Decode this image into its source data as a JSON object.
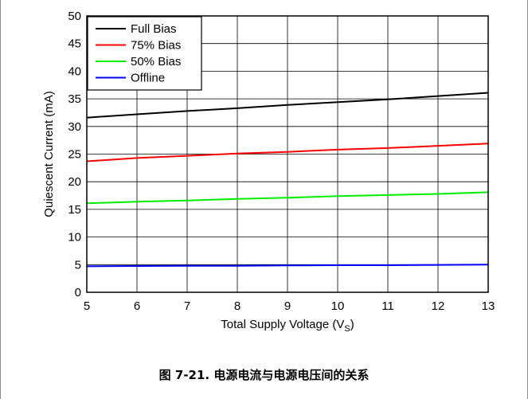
{
  "caption": "图 7-21. 电源电流与电源电压间的关系",
  "chart_data": {
    "type": "line",
    "title": "",
    "xlabel_main": "Total Supply Voltage (V",
    "xlabel_sub": "S",
    "xlabel_end": ")",
    "ylabel": "Quiescent Current (mA)",
    "xlim": [
      5,
      13
    ],
    "ylim": [
      0,
      50
    ],
    "xticks": [
      "5",
      "6",
      "7",
      "8",
      "9",
      "10",
      "11",
      "12",
      "13"
    ],
    "yticks": [
      "0",
      "5",
      "10",
      "15",
      "20",
      "25",
      "30",
      "35",
      "40",
      "45",
      "50"
    ],
    "grid": true,
    "legend_position": "top-left",
    "x": [
      5,
      6,
      7,
      8,
      9,
      10,
      11,
      12,
      13
    ],
    "series": [
      {
        "name": "Full Bias",
        "color": "#000000",
        "values": [
          31.6,
          32.2,
          32.8,
          33.3,
          33.9,
          34.4,
          34.9,
          35.5,
          36.1
        ]
      },
      {
        "name": "75% Bias",
        "color": "#ff0000",
        "values": [
          23.7,
          24.3,
          24.7,
          25.1,
          25.4,
          25.8,
          26.1,
          26.5,
          26.9
        ]
      },
      {
        "name": "50% Bias",
        "color": "#00ee00",
        "values": [
          16.1,
          16.4,
          16.6,
          16.9,
          17.1,
          17.4,
          17.6,
          17.8,
          18.1
        ]
      },
      {
        "name": "Offline",
        "color": "#0000ff",
        "values": [
          4.7,
          4.75,
          4.8,
          4.8,
          4.85,
          4.9,
          4.9,
          4.95,
          5.0
        ]
      }
    ]
  }
}
